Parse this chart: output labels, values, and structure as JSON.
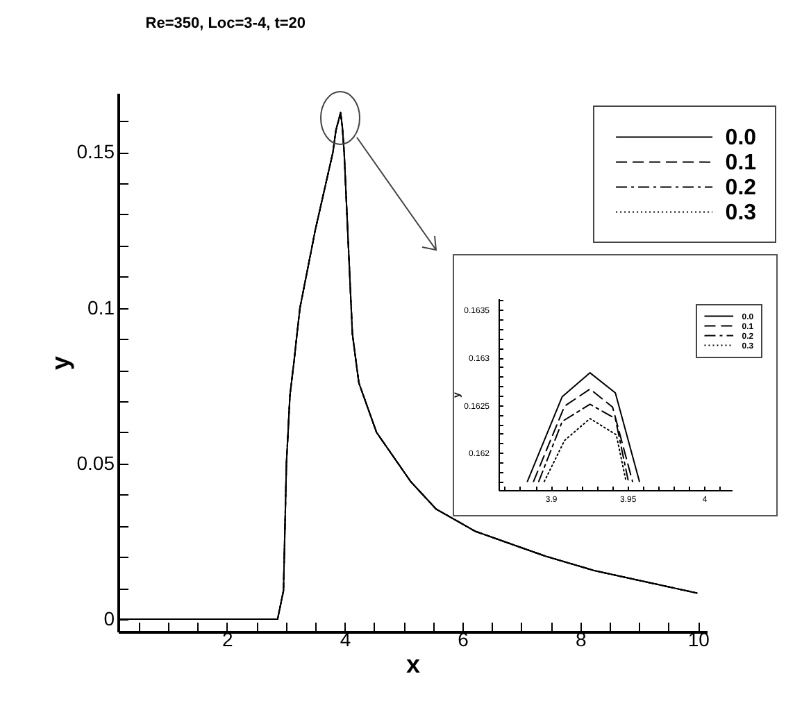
{
  "chart_data": [
    {
      "type": "line",
      "title": "Re=350,  Loc=3-4, t=20",
      "xlabel": "x",
      "ylabel": "y",
      "legend": "top right",
      "grid": false,
      "xlim": [
        0.15,
        10.15
      ],
      "ylim": [
        -0.004,
        0.169
      ],
      "xticks": [
        {
          "value": 0.5,
          "label": null
        },
        {
          "value": 1,
          "label": null
        },
        {
          "value": 1.5,
          "label": null
        },
        2,
        {
          "value": 2.5,
          "label": null
        },
        {
          "value": 3,
          "label": null
        },
        {
          "value": 3.5,
          "label": null
        },
        4,
        {
          "value": 4.5,
          "label": null
        },
        {
          "value": 5,
          "label": null
        },
        {
          "value": 5.5,
          "label": null
        },
        6,
        {
          "value": 6.5,
          "label": null
        },
        {
          "value": 7,
          "label": null
        },
        {
          "value": 7.5,
          "label": null
        },
        8,
        {
          "value": 8.5,
          "label": null
        },
        {
          "value": 9,
          "label": null
        },
        {
          "value": 9.5,
          "label": null
        },
        10
      ],
      "yticks": [
        0,
        {
          "value": 0.01,
          "label": null
        },
        {
          "value": 0.02,
          "label": null
        },
        {
          "value": 0.03,
          "label": null
        },
        {
          "value": 0.04,
          "label": null
        },
        0.05,
        {
          "value": 0.06,
          "label": null
        },
        {
          "value": 0.07,
          "label": null
        },
        {
          "value": 0.08,
          "label": null
        },
        {
          "value": 0.09,
          "label": null
        },
        0.1,
        {
          "value": 0.11,
          "label": null
        },
        {
          "value": 0.12,
          "label": null
        },
        {
          "value": 0.13,
          "label": null
        },
        {
          "value": 0.14,
          "label": null
        },
        0.15,
        {
          "value": 0.16,
          "label": null
        }
      ],
      "x": [
        0.15,
        1,
        2,
        2.8,
        2.86,
        2.96,
        3.01,
        3.07,
        3.14,
        3.19,
        3.24,
        3.5,
        3.8,
        3.85,
        3.93,
        3.96,
        3.99,
        4.13,
        4.19,
        4.24,
        4.54,
        5.12,
        5.55,
        6.22,
        7.4,
        8.24,
        9.98
      ],
      "series": [
        {
          "name": "0.0",
          "color": "#000000",
          "line_style": "solid",
          "values": [
            0,
            0,
            0,
            0,
            0,
            0.0092,
            0.05,
            0.072,
            0.083,
            0.0917,
            0.1,
            0.125,
            0.15,
            0.157,
            0.1628,
            0.158,
            0.15,
            0.0917,
            0.083,
            0.0759,
            0.06,
            0.0442,
            0.0354,
            0.0282,
            0.0203,
            0.0156,
            0.0084
          ]
        },
        {
          "name": "0.1",
          "color": "#000000",
          "line_style": "dashed",
          "values": [
            0,
            0,
            0,
            0,
            0,
            0.0092,
            0.05,
            0.072,
            0.083,
            0.0917,
            0.1,
            0.125,
            0.15,
            0.157,
            0.1627,
            0.158,
            0.15,
            0.0917,
            0.083,
            0.0759,
            0.06,
            0.0442,
            0.0354,
            0.0282,
            0.0203,
            0.0156,
            0.0084
          ]
        },
        {
          "name": "0.2",
          "color": "#000000",
          "line_style": "dashdot",
          "values": [
            0,
            0,
            0,
            0,
            0,
            0.0092,
            0.05,
            0.072,
            0.083,
            0.0917,
            0.1,
            0.125,
            0.15,
            0.157,
            0.1625,
            0.158,
            0.15,
            0.0917,
            0.083,
            0.0759,
            0.06,
            0.0442,
            0.0354,
            0.0282,
            0.0203,
            0.0156,
            0.0084
          ]
        },
        {
          "name": "0.3",
          "color": "#000000",
          "line_style": "dotted",
          "values": [
            0,
            0,
            0,
            0,
            0,
            0.0092,
            0.05,
            0.072,
            0.083,
            0.0917,
            0.1,
            0.125,
            0.15,
            0.157,
            0.1624,
            0.158,
            0.15,
            0.0917,
            0.083,
            0.0759,
            0.06,
            0.0442,
            0.0354,
            0.0282,
            0.0203,
            0.0156,
            0.0084
          ]
        }
      ]
    },
    {
      "type": "line",
      "ylabel": "y",
      "legend": "top right",
      "grid": false,
      "xlim": [
        3.866,
        4.018
      ],
      "ylim": [
        0.16161,
        0.16362
      ],
      "xticks": [
        {
          "value": 3.87,
          "label": null
        },
        {
          "value": 3.88,
          "label": null
        },
        {
          "value": 3.89,
          "label": null
        },
        3.9,
        {
          "value": 3.91,
          "label": null
        },
        {
          "value": 3.92,
          "label": null
        },
        {
          "value": 3.93,
          "label": null
        },
        {
          "value": 3.94,
          "label": null
        },
        3.95,
        {
          "value": 3.96,
          "label": null
        },
        {
          "value": 3.97,
          "label": null
        },
        {
          "value": 3.98,
          "label": null
        },
        {
          "value": 3.99,
          "label": null
        },
        4,
        {
          "value": 4.01,
          "label": null
        }
      ],
      "yticks": [
        {
          "value": 0.1617,
          "label": null
        },
        {
          "value": 0.1618,
          "label": null
        },
        {
          "value": 0.1619,
          "label": null
        },
        0.162,
        {
          "value": 0.1621,
          "label": null
        },
        {
          "value": 0.1622,
          "label": null
        },
        {
          "value": 0.1623,
          "label": null
        },
        {
          "value": 0.1624,
          "label": null
        },
        0.1625,
        {
          "value": 0.1626,
          "label": null
        },
        {
          "value": 0.1627,
          "label": null
        },
        {
          "value": 0.1628,
          "label": null
        },
        {
          "value": 0.1629,
          "label": null
        },
        0.163,
        {
          "value": 0.1631,
          "label": null
        },
        {
          "value": 0.1632,
          "label": null
        },
        {
          "value": 0.1633,
          "label": null
        },
        {
          "value": 0.1634,
          "label": null
        },
        0.1635,
        {
          "value": 0.1636,
          "label": null
        }
      ],
      "series": [
        {
          "name": "0.0",
          "color": "#000000",
          "line_style": "solid",
          "x": [
            3.8848,
            3.9075,
            3.9256,
            3.9421,
            3.9578
          ],
          "values": [
            0.1617,
            0.16259,
            0.16284,
            0.16263,
            0.1617
          ]
        },
        {
          "name": "0.1",
          "color": "#000000",
          "line_style": "dashed",
          "x": [
            3.8888,
            3.909,
            3.9256,
            3.9403,
            3.9533
          ],
          "values": [
            0.1617,
            0.16249,
            0.16267,
            0.16248,
            0.1617
          ]
        },
        {
          "name": "0.2",
          "color": "#000000",
          "line_style": "dashdot",
          "x": [
            3.8922,
            3.9075,
            3.9256,
            3.9421,
            3.9506
          ],
          "values": [
            0.1617,
            0.16233,
            0.16251,
            0.16236,
            0.1617
          ]
        },
        {
          "name": "0.3",
          "color": "#000000",
          "line_style": "dotted",
          "x": [
            3.8958,
            3.909,
            3.9256,
            3.9427,
            3.9491
          ],
          "values": [
            0.1617,
            0.16213,
            0.16236,
            0.16219,
            0.1617
          ]
        }
      ]
    }
  ]
}
